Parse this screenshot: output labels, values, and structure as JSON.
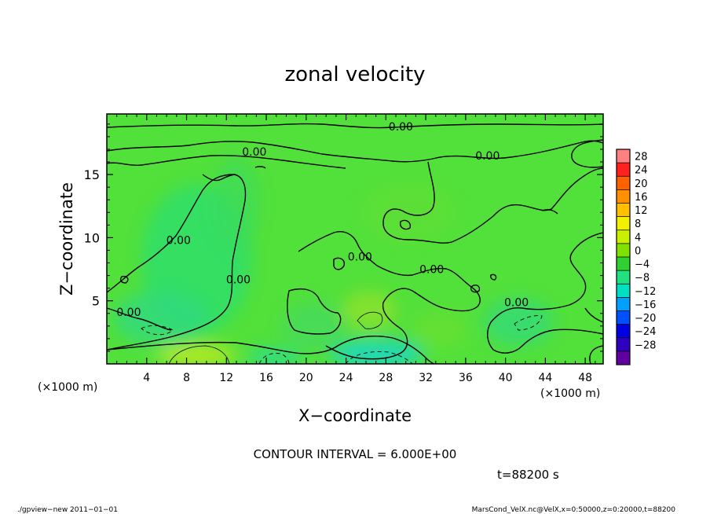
{
  "chart_data": {
    "type": "heatmap",
    "title": "zonal velocity",
    "xlabel": "X−coordinate",
    "ylabel": "Z−coordinate",
    "x_unit_left": "(×1000 m)",
    "x_unit_right": "(×1000 m)",
    "xlim": [
      0,
      49.8
    ],
    "ylim": [
      0,
      19.8
    ],
    "x_ticks": [
      "4",
      "8",
      "12",
      "16",
      "20",
      "24",
      "28",
      "32",
      "36",
      "40",
      "44",
      "48"
    ],
    "x_tick_values": [
      4,
      8,
      12,
      16,
      20,
      24,
      28,
      32,
      36,
      40,
      44,
      48
    ],
    "y_ticks": [
      "5",
      "10",
      "15"
    ],
    "y_tick_values": [
      5,
      10,
      15
    ],
    "colorbar": {
      "labels": [
        "28",
        "24",
        "20",
        "16",
        "12",
        "8",
        "4",
        "0",
        "−4",
        "−8",
        "−12",
        "−16",
        "−20",
        "−24",
        "−28"
      ],
      "levels": [
        30,
        26,
        22,
        18,
        14,
        10,
        6,
        2,
        -2,
        -6,
        -10,
        -14,
        -18,
        -22,
        -26,
        -30
      ],
      "colors": [
        "#ff8080",
        "#ff2020",
        "#ff6000",
        "#ff9000",
        "#ffc000",
        "#f0f000",
        "#c8f000",
        "#80e000",
        "#30d030",
        "#20e080",
        "#00e0c0",
        "#00a0ff",
        "#0050ff",
        "#0000e0",
        "#3000c0",
        "#6000a0"
      ]
    },
    "contour_labels": [
      {
        "text": "0.00",
        "x": 29.5,
        "z": 18.8
      },
      {
        "text": "0.00",
        "x": 14.8,
        "z": 16.8
      },
      {
        "text": "0.00",
        "x": 38.2,
        "z": 16.5
      },
      {
        "text": "0.00",
        "x": 7.2,
        "z": 9.8
      },
      {
        "text": "0.00",
        "x": 25.4,
        "z": 8.5
      },
      {
        "text": "0.00",
        "x": 32.6,
        "z": 7.5
      },
      {
        "text": "0.00",
        "x": 13.2,
        "z": 6.7
      },
      {
        "text": "0.00",
        "x": 41.1,
        "z": 4.9
      },
      {
        "text": "0.00",
        "x": 2.2,
        "z": 4.1
      }
    ],
    "contour_interval_text": "CONTOUR INTERVAL = 6.000E+00",
    "time_text": "t=88200 s"
  },
  "footer": {
    "left": "./gpview−new  2011−01−01",
    "right": "MarsCond_VelX.nc@VelX,x=0:50000,z=0:20000,t=88200"
  }
}
